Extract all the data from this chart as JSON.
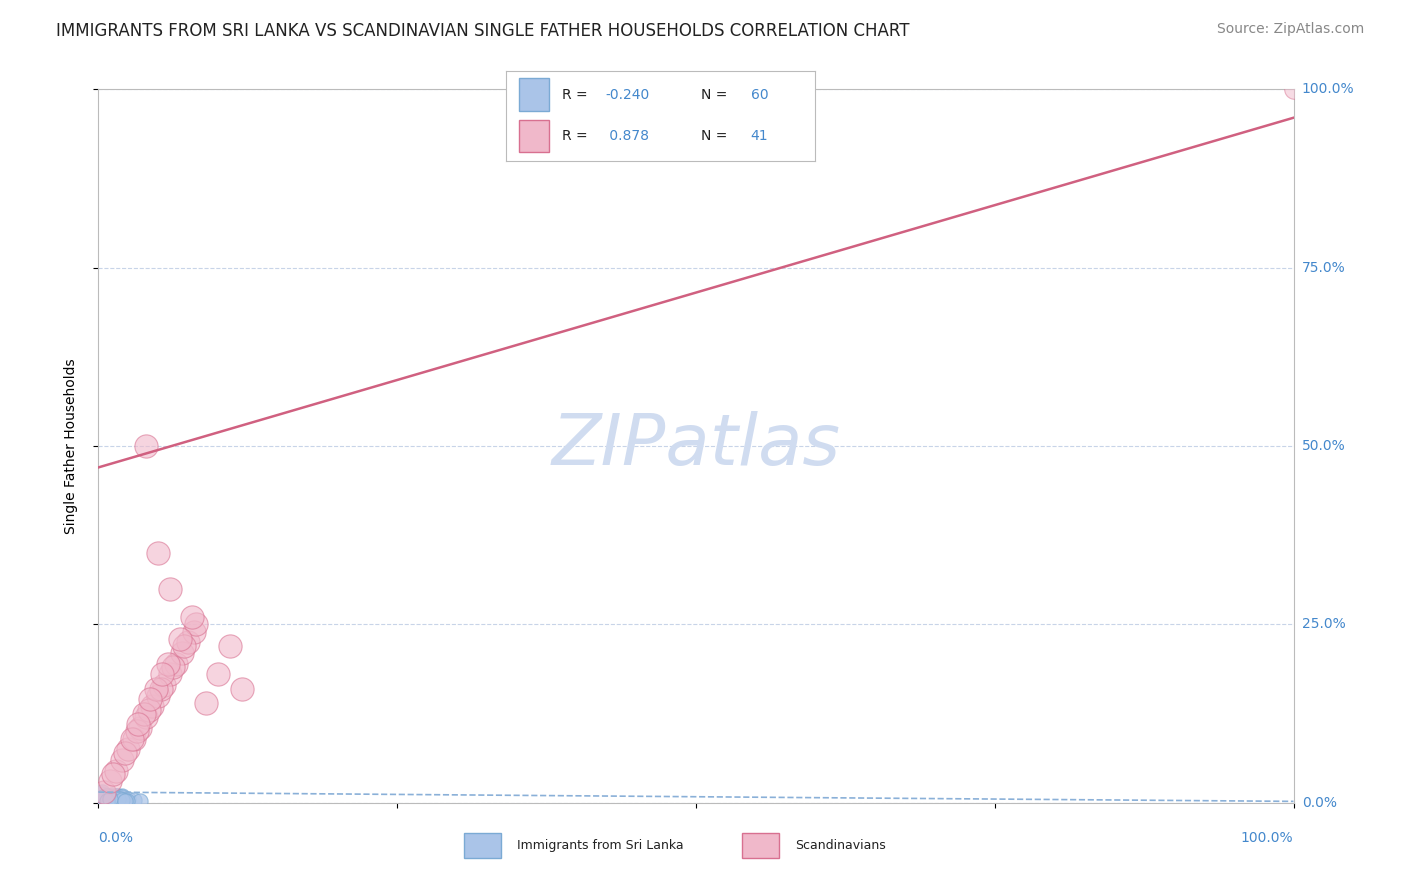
{
  "title": "IMMIGRANTS FROM SRI LANKA VS SCANDINAVIAN SINGLE FATHER HOUSEHOLDS CORRELATION CHART",
  "source": "Source: ZipAtlas.com",
  "ylabel": "Single Father Households",
  "ytick_labels": [
    "0.0%",
    "25.0%",
    "50.0%",
    "75.0%",
    "100.0%"
  ],
  "ytick_values": [
    0,
    25,
    50,
    75,
    100
  ],
  "background_color": "#ffffff",
  "grid_color": "#c8d4e8",
  "watermark": "ZIPatlas",
  "blue_color": "#aac4e8",
  "blue_edge": "#7baad4",
  "pink_color": "#f0b8ca",
  "pink_edge": "#d87090",
  "pink_line_color": "#d06080",
  "blue_line_color": "#8ab0d8",
  "tick_color": "#4488cc",
  "title_fontsize": 12,
  "source_fontsize": 10,
  "ylabel_fontsize": 10,
  "tick_fontsize": 10,
  "legend_fontsize": 11,
  "watermark_fontsize": 52,
  "watermark_color": "#d0dcf0",
  "blue_R": -0.24,
  "blue_N": 60,
  "pink_R": 0.878,
  "pink_N": 41,
  "xlim": [
    0,
    100
  ],
  "ylim": [
    0,
    100
  ],
  "blue_scatter_seed": 42,
  "pink_scatter_seed": 15,
  "blue_scatter_x": [
    0.1,
    0.2,
    0.3,
    0.4,
    0.5,
    0.6,
    0.7,
    0.8,
    0.9,
    1.0,
    1.1,
    1.2,
    1.3,
    1.4,
    1.5,
    1.6,
    1.7,
    1.8,
    1.9,
    2.0,
    0.05,
    0.15,
    0.25,
    0.35,
    0.45,
    0.55,
    0.65,
    0.75,
    0.85,
    0.95,
    1.05,
    1.15,
    1.25,
    1.35,
    1.45,
    1.55,
    1.65,
    1.75,
    1.85,
    1.95,
    2.5,
    3.0,
    3.5,
    0.3,
    0.6,
    0.9,
    1.2,
    1.5,
    1.8,
    2.1,
    2.4,
    0.4,
    0.8,
    1.2,
    1.6,
    2.0,
    0.2,
    0.7,
    1.0,
    2.2
  ],
  "blue_scatter_y": [
    0.5,
    0.8,
    1.2,
    0.3,
    0.6,
    1.0,
    0.4,
    0.9,
    0.2,
    0.7,
    1.1,
    0.5,
    0.8,
    0.3,
    0.6,
    1.0,
    0.4,
    0.7,
    0.2,
    0.9,
    0.3,
    0.6,
    0.5,
    0.8,
    0.2,
    0.7,
    0.4,
    0.9,
    0.1,
    0.6,
    0.8,
    0.3,
    0.5,
    0.7,
    0.2,
    0.9,
    0.4,
    0.6,
    0.3,
    0.8,
    0.5,
    0.4,
    0.3,
    1.5,
    0.9,
    0.6,
    0.4,
    0.7,
    0.5,
    0.3,
    0.2,
    0.8,
    0.5,
    0.3,
    0.6,
    0.4,
    0.7,
    0.3,
    0.5,
    0.2
  ],
  "pink_scatter_x": [
    0.5,
    1.0,
    1.5,
    2.0,
    2.5,
    3.0,
    3.5,
    4.0,
    4.5,
    5.0,
    5.5,
    6.0,
    6.5,
    7.0,
    7.5,
    8.0,
    9.0,
    10.0,
    11.0,
    12.0,
    1.2,
    2.2,
    3.2,
    4.2,
    5.2,
    6.2,
    7.2,
    8.2,
    2.8,
    3.8,
    4.8,
    5.8,
    6.8,
    7.8,
    3.3,
    4.3,
    5.3,
    4.0,
    5.0,
    6.0,
    100.0
  ],
  "pink_scatter_y": [
    1.5,
    3.0,
    4.5,
    6.0,
    7.5,
    9.0,
    10.5,
    12.0,
    13.5,
    15.0,
    16.5,
    18.0,
    19.5,
    21.0,
    22.5,
    24.0,
    14.0,
    18.0,
    22.0,
    16.0,
    4.0,
    7.0,
    10.0,
    13.0,
    16.0,
    19.0,
    22.0,
    25.0,
    9.0,
    12.5,
    16.0,
    19.5,
    23.0,
    26.0,
    11.0,
    14.5,
    18.0,
    50.0,
    35.0,
    30.0,
    100.0
  ],
  "pink_line_x0": 0,
  "pink_line_y0": 47,
  "pink_line_x1": 100,
  "pink_line_y1": 96,
  "blue_line_x0": 0,
  "blue_line_y0": 1.5,
  "blue_line_x1": 100,
  "blue_line_y1": 0.2
}
